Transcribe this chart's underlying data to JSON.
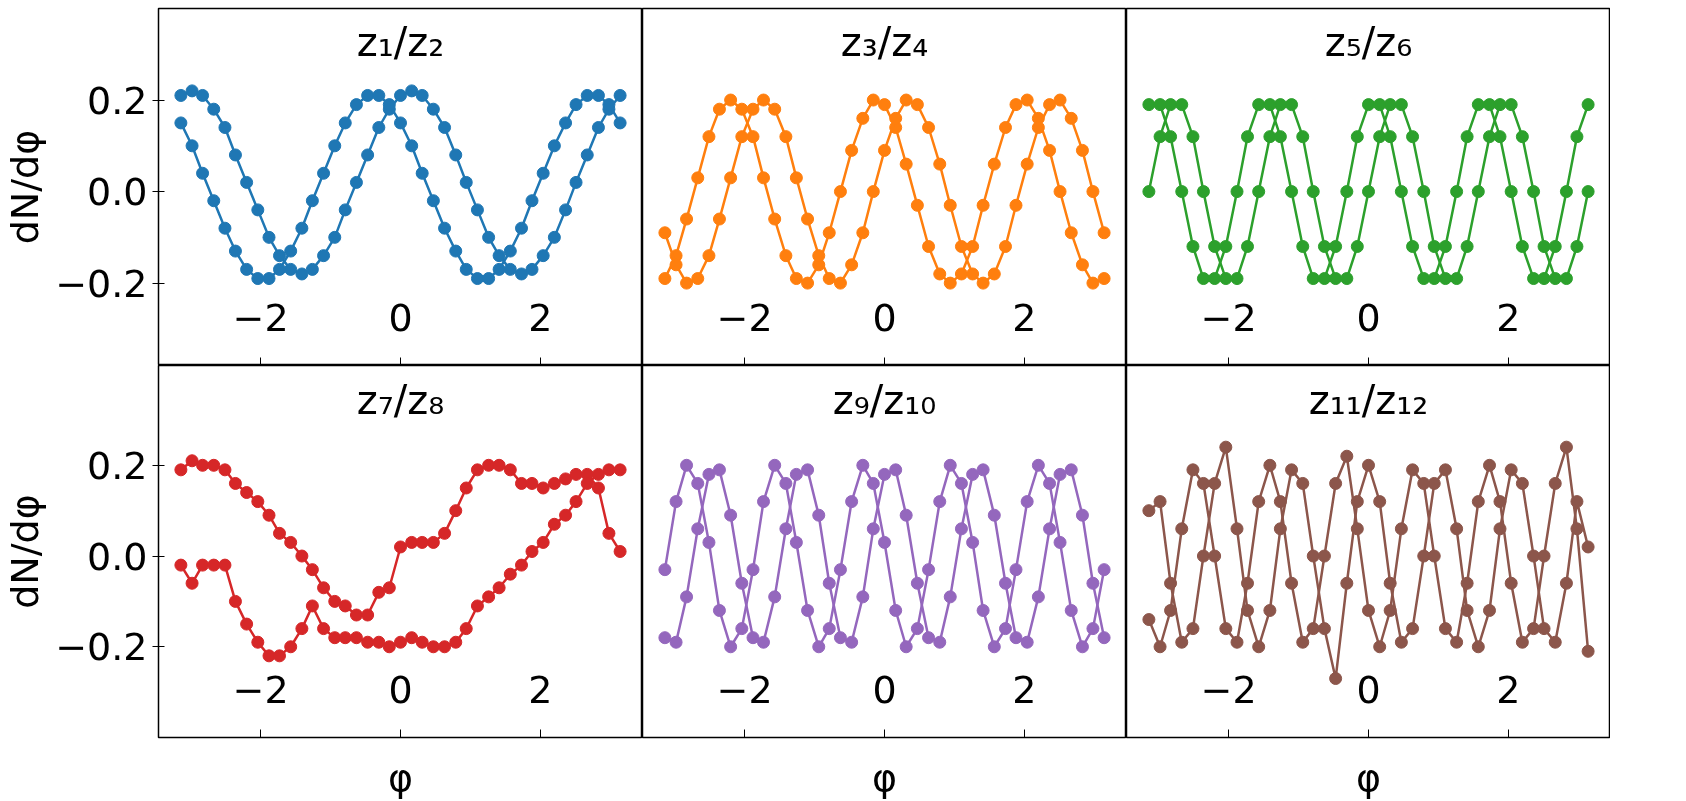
{
  "chart_data": [
    {
      "type": "line",
      "title": "z₁/z₂",
      "ylabel": "dN/dφ",
      "marker": "circle",
      "xlim": [
        -3.46,
        3.46
      ],
      "ylim": [
        -0.38,
        0.4
      ],
      "xticks": [
        -2,
        0,
        2
      ],
      "yticks": [
        {
          "value": -0.2,
          "label": "−0.2"
        },
        {
          "value": 0,
          "label": "0.0"
        },
        {
          "value": 0.2,
          "label": "0.2"
        }
      ],
      "x": [
        -3.14,
        -2.98,
        -2.83,
        -2.67,
        -2.51,
        -2.36,
        -2.2,
        -2.04,
        -1.88,
        -1.73,
        -1.57,
        -1.41,
        -1.26,
        -1.1,
        -0.94,
        -0.79,
        -0.63,
        -0.47,
        -0.31,
        -0.16,
        0,
        0.16,
        0.31,
        0.47,
        0.63,
        0.79,
        0.94,
        1.1,
        1.26,
        1.41,
        1.57,
        1.73,
        1.88,
        2.04,
        2.2,
        2.36,
        2.51,
        2.67,
        2.83,
        2.98,
        3.14
      ],
      "series": [
        {
          "color": "#1f77b4",
          "values": [
            0.21,
            0.22,
            0.21,
            0.18,
            0.14,
            0.08,
            0.02,
            -0.04,
            -0.1,
            -0.14,
            -0.17,
            -0.18,
            -0.17,
            -0.14,
            -0.1,
            -0.04,
            0.02,
            0.08,
            0.14,
            0.18,
            0.21,
            0.22,
            0.21,
            0.18,
            0.14,
            0.08,
            0.02,
            -0.04,
            -0.1,
            -0.14,
            -0.17,
            -0.18,
            -0.17,
            -0.14,
            -0.1,
            -0.04,
            0.02,
            0.08,
            0.14,
            0.18,
            0.21
          ]
        },
        {
          "color": "#1f77b4",
          "values": [
            0.15,
            0.1,
            0.04,
            -0.02,
            -0.08,
            -0.13,
            -0.17,
            -0.19,
            -0.19,
            -0.17,
            -0.13,
            -0.08,
            -0.02,
            0.04,
            0.1,
            0.15,
            0.19,
            0.21,
            0.21,
            0.19,
            0.15,
            0.1,
            0.04,
            -0.02,
            -0.08,
            -0.13,
            -0.17,
            -0.19,
            -0.19,
            -0.17,
            -0.13,
            -0.08,
            -0.02,
            0.04,
            0.1,
            0.15,
            0.19,
            0.21,
            0.21,
            0.19,
            0.15
          ]
        }
      ]
    },
    {
      "type": "line",
      "title": "z₃/z₄",
      "marker": "circle",
      "tick_labels": "x",
      "xlim": [
        -3.46,
        3.46
      ],
      "ylim": [
        -0.38,
        0.4
      ],
      "xticks": [
        -2,
        0,
        2
      ],
      "x": [
        -3.14,
        -2.98,
        -2.83,
        -2.67,
        -2.51,
        -2.36,
        -2.2,
        -2.04,
        -1.88,
        -1.73,
        -1.57,
        -1.41,
        -1.26,
        -1.1,
        -0.94,
        -0.79,
        -0.63,
        -0.47,
        -0.31,
        -0.16,
        0,
        0.16,
        0.31,
        0.47,
        0.63,
        0.79,
        0.94,
        1.1,
        1.26,
        1.41,
        1.57,
        1.73,
        1.88,
        2.04,
        2.2,
        2.36,
        2.51,
        2.67,
        2.83,
        2.98,
        3.14
      ],
      "series": [
        {
          "color": "#ff7f0e",
          "values": [
            -0.19,
            -0.14,
            -0.06,
            0.03,
            0.12,
            0.18,
            0.2,
            0.18,
            0.12,
            0.03,
            -0.06,
            -0.14,
            -0.19,
            -0.2,
            -0.16,
            -0.09,
            0.0,
            0.09,
            0.16,
            0.2,
            0.19,
            0.14,
            0.06,
            -0.03,
            -0.12,
            -0.18,
            -0.2,
            -0.18,
            -0.12,
            -0.03,
            0.06,
            0.14,
            0.19,
            0.2,
            0.16,
            0.09,
            0.0,
            -0.09,
            -0.16,
            -0.2,
            -0.19
          ]
        },
        {
          "color": "#ff7f0e",
          "values": [
            -0.09,
            -0.16,
            -0.2,
            -0.19,
            -0.14,
            -0.06,
            0.03,
            0.12,
            0.18,
            0.2,
            0.18,
            0.12,
            0.03,
            -0.06,
            -0.14,
            -0.19,
            -0.2,
            -0.16,
            -0.09,
            0.0,
            0.09,
            0.16,
            0.2,
            0.19,
            0.14,
            0.06,
            -0.03,
            -0.12,
            -0.18,
            -0.2,
            -0.18,
            -0.12,
            -0.03,
            0.06,
            0.14,
            0.19,
            0.2,
            0.16,
            0.09,
            0.0,
            -0.09
          ]
        }
      ]
    },
    {
      "type": "line",
      "title": "z₅/z₆",
      "marker": "circle",
      "tick_labels": "x",
      "xlim": [
        -3.46,
        3.46
      ],
      "ylim": [
        -0.38,
        0.4
      ],
      "xticks": [
        -2,
        0,
        2
      ],
      "x": [
        -3.14,
        -2.98,
        -2.83,
        -2.67,
        -2.51,
        -2.36,
        -2.2,
        -2.04,
        -1.88,
        -1.73,
        -1.57,
        -1.41,
        -1.26,
        -1.1,
        -0.94,
        -0.79,
        -0.63,
        -0.47,
        -0.31,
        -0.16,
        0,
        0.16,
        0.31,
        0.47,
        0.63,
        0.79,
        0.94,
        1.1,
        1.26,
        1.41,
        1.57,
        1.73,
        1.88,
        2.04,
        2.2,
        2.36,
        2.51,
        2.67,
        2.83,
        2.98,
        3.14
      ],
      "series": [
        {
          "color": "#2ca02c",
          "values": [
            0.0,
            0.12,
            0.19,
            0.19,
            0.12,
            0.0,
            -0.12,
            -0.19,
            -0.19,
            -0.12,
            0.0,
            0.12,
            0.19,
            0.19,
            0.12,
            0.0,
            -0.12,
            -0.19,
            -0.19,
            -0.12,
            0.0,
            0.12,
            0.19,
            0.19,
            0.12,
            0.0,
            -0.12,
            -0.19,
            -0.19,
            -0.12,
            0.0,
            0.12,
            0.19,
            0.19,
            0.12,
            0.0,
            -0.12,
            -0.19,
            -0.19,
            -0.12,
            0.0
          ]
        },
        {
          "color": "#2ca02c",
          "values": [
            0.19,
            0.19,
            0.12,
            0.0,
            -0.12,
            -0.19,
            -0.19,
            -0.12,
            0.0,
            0.12,
            0.19,
            0.19,
            0.12,
            0.0,
            -0.12,
            -0.19,
            -0.19,
            -0.12,
            0.0,
            0.12,
            0.19,
            0.19,
            0.12,
            0.0,
            -0.12,
            -0.19,
            -0.19,
            -0.12,
            0.0,
            0.12,
            0.19,
            0.19,
            0.12,
            0.0,
            -0.12,
            -0.19,
            -0.19,
            -0.12,
            0.0,
            0.12,
            0.19
          ]
        }
      ]
    },
    {
      "type": "line",
      "title": "z₇/z₈",
      "ylabel": "dN/dφ",
      "xlabel": "φ",
      "marker": "circle",
      "xlim": [
        -3.46,
        3.46
      ],
      "ylim": [
        -0.4,
        0.42
      ],
      "xticks": [
        -2,
        0,
        2
      ],
      "yticks": [
        {
          "value": -0.2,
          "label": "−0.2"
        },
        {
          "value": 0,
          "label": "0.0"
        },
        {
          "value": 0.2,
          "label": "0.2"
        }
      ],
      "x": [
        -3.14,
        -2.98,
        -2.83,
        -2.67,
        -2.51,
        -2.36,
        -2.2,
        -2.04,
        -1.88,
        -1.73,
        -1.57,
        -1.41,
        -1.26,
        -1.1,
        -0.94,
        -0.79,
        -0.63,
        -0.47,
        -0.31,
        -0.16,
        0,
        0.16,
        0.31,
        0.47,
        0.63,
        0.79,
        0.94,
        1.1,
        1.26,
        1.41,
        1.57,
        1.73,
        1.88,
        2.04,
        2.2,
        2.36,
        2.51,
        2.67,
        2.83,
        2.98,
        3.14
      ],
      "series": [
        {
          "color": "#d62728",
          "values": [
            0.19,
            0.21,
            0.2,
            0.2,
            0.19,
            0.16,
            0.14,
            0.12,
            0.09,
            0.05,
            0.03,
            0.0,
            -0.03,
            -0.07,
            -0.1,
            -0.11,
            -0.13,
            -0.13,
            -0.08,
            -0.07,
            0.02,
            0.03,
            0.03,
            0.03,
            0.05,
            0.1,
            0.15,
            0.19,
            0.2,
            0.2,
            0.19,
            0.16,
            0.16,
            0.15,
            0.16,
            0.17,
            0.18,
            0.18,
            0.15,
            0.05,
            0.01
          ]
        },
        {
          "color": "#d62728",
          "values": [
            -0.02,
            -0.06,
            -0.02,
            -0.02,
            -0.02,
            -0.1,
            -0.15,
            -0.19,
            -0.22,
            -0.22,
            -0.2,
            -0.16,
            -0.11,
            -0.16,
            -0.18,
            -0.18,
            -0.18,
            -0.19,
            -0.19,
            -0.2,
            -0.19,
            -0.18,
            -0.19,
            -0.2,
            -0.2,
            -0.19,
            -0.16,
            -0.11,
            -0.09,
            -0.07,
            -0.04,
            -0.02,
            0.01,
            0.03,
            0.07,
            0.09,
            0.12,
            0.16,
            0.18,
            0.19,
            0.19
          ]
        }
      ]
    },
    {
      "type": "line",
      "title": "z₉/z₁₀",
      "xlabel": "φ",
      "marker": "circle",
      "tick_labels": "x",
      "xlim": [
        -3.46,
        3.46
      ],
      "ylim": [
        -0.4,
        0.42
      ],
      "xticks": [
        -2,
        0,
        2
      ],
      "x": [
        -3.14,
        -2.98,
        -2.83,
        -2.67,
        -2.51,
        -2.36,
        -2.2,
        -2.04,
        -1.88,
        -1.73,
        -1.57,
        -1.41,
        -1.26,
        -1.1,
        -0.94,
        -0.79,
        -0.63,
        -0.47,
        -0.31,
        -0.16,
        0,
        0.16,
        0.31,
        0.47,
        0.63,
        0.79,
        0.94,
        1.1,
        1.26,
        1.41,
        1.57,
        1.73,
        1.88,
        2.04,
        2.2,
        2.36,
        2.51,
        2.67,
        2.83,
        2.98,
        3.14
      ],
      "series": [
        {
          "color": "#9467bd",
          "values": [
            -0.18,
            -0.19,
            -0.09,
            0.06,
            0.18,
            0.19,
            0.09,
            -0.06,
            -0.18,
            -0.19,
            -0.09,
            0.06,
            0.18,
            0.19,
            0.09,
            -0.06,
            -0.18,
            -0.19,
            -0.09,
            0.06,
            0.18,
            0.19,
            0.09,
            -0.06,
            -0.18,
            -0.19,
            -0.09,
            0.06,
            0.18,
            0.19,
            0.09,
            -0.06,
            -0.18,
            -0.19,
            -0.09,
            0.06,
            0.18,
            0.19,
            0.09,
            -0.06,
            -0.18
          ]
        },
        {
          "color": "#9467bd",
          "values": [
            -0.03,
            0.12,
            0.2,
            0.16,
            0.03,
            -0.12,
            -0.2,
            -0.16,
            -0.03,
            0.12,
            0.2,
            0.16,
            0.03,
            -0.12,
            -0.2,
            -0.16,
            -0.03,
            0.12,
            0.2,
            0.16,
            0.03,
            -0.12,
            -0.2,
            -0.16,
            -0.03,
            0.12,
            0.2,
            0.16,
            0.03,
            -0.12,
            -0.2,
            -0.16,
            -0.03,
            0.12,
            0.2,
            0.16,
            0.03,
            -0.12,
            -0.2,
            -0.16,
            -0.03
          ]
        }
      ]
    },
    {
      "type": "line",
      "title": "z₁₁/z₁₂",
      "xlabel": "φ",
      "marker": "circle",
      "tick_labels": "x",
      "xlim": [
        -3.46,
        3.46
      ],
      "ylim": [
        -0.4,
        0.42
      ],
      "xticks": [
        -2,
        0,
        2
      ],
      "x": [
        -3.14,
        -2.98,
        -2.83,
        -2.67,
        -2.51,
        -2.36,
        -2.2,
        -2.04,
        -1.88,
        -1.73,
        -1.57,
        -1.41,
        -1.26,
        -1.1,
        -0.94,
        -0.79,
        -0.63,
        -0.47,
        -0.31,
        -0.16,
        0,
        0.16,
        0.31,
        0.47,
        0.63,
        0.79,
        0.94,
        1.1,
        1.26,
        1.41,
        1.57,
        1.73,
        1.88,
        2.04,
        2.2,
        2.36,
        2.51,
        2.67,
        2.83,
        2.98,
        3.14
      ],
      "series": [
        {
          "color": "#8c564b",
          "values": [
            0.1,
            0.12,
            -0.06,
            -0.19,
            -0.16,
            0.0,
            0.16,
            0.24,
            0.06,
            -0.12,
            -0.2,
            -0.12,
            0.06,
            0.19,
            0.16,
            0.0,
            -0.16,
            -0.27,
            -0.06,
            0.12,
            0.2,
            0.12,
            -0.06,
            -0.19,
            -0.16,
            0.0,
            0.16,
            0.19,
            0.06,
            -0.12,
            -0.2,
            -0.12,
            0.06,
            0.19,
            0.16,
            0.0,
            -0.16,
            -0.19,
            -0.06,
            0.12,
            0.02
          ]
        },
        {
          "color": "#8c564b",
          "values": [
            -0.14,
            -0.2,
            -0.12,
            0.06,
            0.19,
            0.16,
            0.0,
            -0.16,
            -0.19,
            -0.06,
            0.12,
            0.2,
            0.12,
            -0.06,
            -0.19,
            -0.16,
            0.0,
            0.16,
            0.22,
            0.06,
            -0.12,
            -0.2,
            -0.12,
            0.06,
            0.19,
            0.16,
            0.0,
            -0.16,
            -0.19,
            -0.06,
            0.12,
            0.2,
            0.12,
            -0.06,
            -0.19,
            -0.16,
            0.0,
            0.16,
            0.24,
            0.06,
            -0.21
          ]
        }
      ]
    }
  ]
}
